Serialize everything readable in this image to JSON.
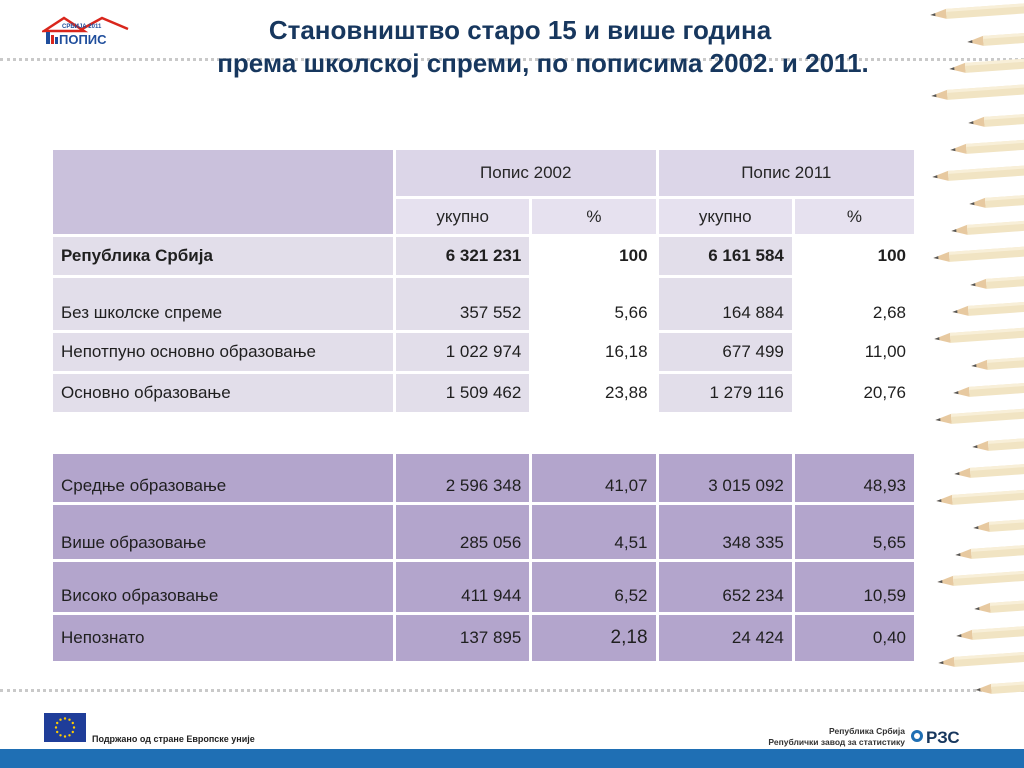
{
  "logo": {
    "top_text": "СРБИЈА 2011",
    "main_text": "ПОПИС",
    "colors": {
      "red": "#d9261c",
      "blue": "#1f4e9c"
    }
  },
  "title": {
    "line1": "Становништво старо 15 и више година",
    "line2": "према школској спреми,  по пописима 2002. и 2011."
  },
  "table": {
    "census_headers": [
      "Попис 2002",
      "Попис 2011"
    ],
    "sub_headers": [
      "укупно",
      "%",
      "укупно",
      "%"
    ],
    "rows_top": [
      {
        "label": "Република Србија",
        "v2002": "6 321 231",
        "p2002": "100",
        "v2011": "6 161 584",
        "p2011": "100"
      },
      {
        "label": "Без школске спреме",
        "v2002": "357 552",
        "p2002": "5,66",
        "v2011": "164 884",
        "p2011": "2,68"
      },
      {
        "label": "Непотпуно основно образовање",
        "v2002": "1 022 974",
        "p2002": "16,18",
        "v2011": "677 499",
        "p2011": "11,00"
      },
      {
        "label": "Основно образовање",
        "v2002": "1 509 462",
        "p2002": "23,88",
        "v2011": "1 279 116",
        "p2011": "20,76"
      }
    ],
    "rows_bottom": [
      {
        "label": "Средње образовање",
        "v2002": "2 596 348",
        "p2002": "41,07",
        "v2011": "3 015 092",
        "p2011": "48,93"
      },
      {
        "label": "Више образовање",
        "v2002": "285 056",
        "p2002": "4,51",
        "v2011": "348 335",
        "p2011": "5,65"
      },
      {
        "label": "Високо образовање",
        "v2002": "411 944",
        "p2002": "6,52",
        "v2011": "652 234",
        "p2011": "10,59"
      },
      {
        "label": "Непознато",
        "v2002": "137 895",
        "p2002": "2,18",
        "v2011": "24 424",
        "p2011": "0,40"
      }
    ],
    "colors": {
      "header": "#cac1dc",
      "row": "#e2deea",
      "bottom_rows": "#b3a5cc"
    }
  },
  "footer": {
    "eu_text": "Подржано од стране Европске уније",
    "rzs_line1": "Република Србија",
    "rzs_line2": "Републички  завод за статистику",
    "rzs_logo_text": "РЗС",
    "bar_color": "#1f6fb4"
  },
  "decor": {
    "pencils": "pencil-border-icon",
    "eu_flag": "eu-flag-icon"
  }
}
